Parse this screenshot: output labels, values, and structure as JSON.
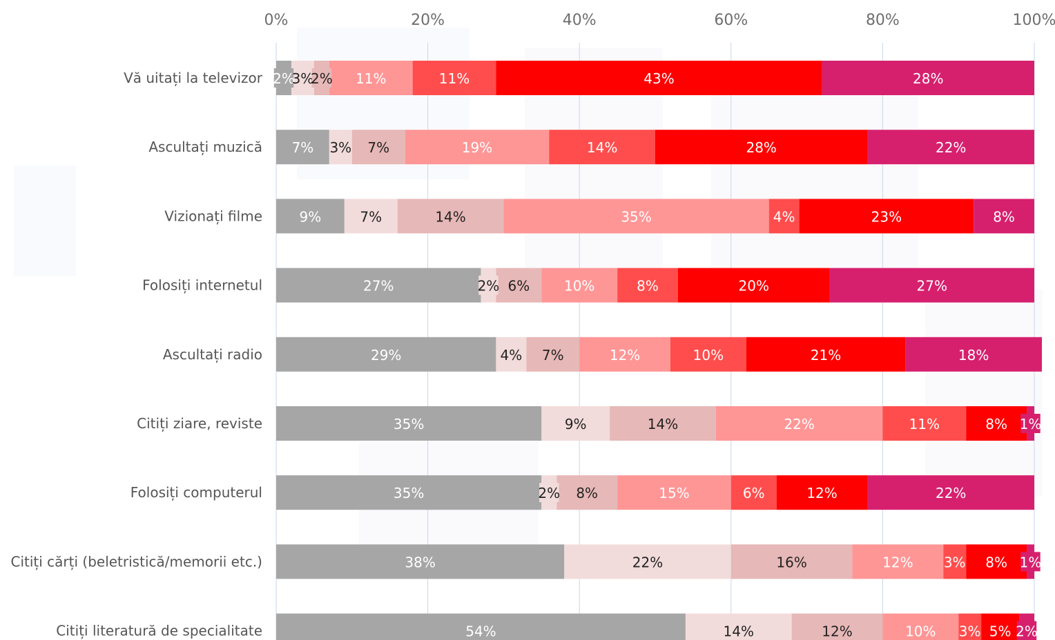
{
  "chart_data": {
    "type": "bar",
    "orientation": "horizontal",
    "stacked": true,
    "title": "",
    "xlabel": "",
    "ylabel": "",
    "xlim": [
      0,
      100
    ],
    "x_ticks": [
      "0%",
      "20%",
      "40%",
      "60%",
      "80%",
      "100%"
    ],
    "grid": true,
    "legend": "none",
    "value_suffix": "%",
    "categories": [
      "Vă uitați la televizor",
      "Ascultați muzică",
      "Vizionați filme",
      "Folosiți internetul",
      "Ascultați radio",
      "Citiți ziare, reviste",
      "Folosiți computerul",
      "Citiți cărți (beletristică/memorii etc.)",
      "Citiți literatură de specialitate"
    ],
    "series_colors": [
      "#a6a6a6",
      "#f2dcdb",
      "#e6b8b7",
      "#ff9696",
      "#ff4d4d",
      "#ff0000",
      "#d6206e"
    ],
    "label_colors": [
      "#ffffff",
      "#222222",
      "#222222",
      "#ffffff",
      "#ffffff",
      "#ffffff",
      "#ffffff"
    ],
    "series": [
      {
        "values": [
          2,
          7,
          9,
          27,
          29,
          35,
          35,
          38,
          54
        ]
      },
      {
        "values": [
          3,
          3,
          7,
          2,
          4,
          9,
          2,
          22,
          14
        ]
      },
      {
        "values": [
          2,
          7,
          14,
          6,
          7,
          14,
          8,
          16,
          12
        ]
      },
      {
        "values": [
          11,
          19,
          35,
          10,
          12,
          22,
          15,
          12,
          10
        ]
      },
      {
        "values": [
          11,
          14,
          4,
          8,
          10,
          11,
          6,
          3,
          3
        ]
      },
      {
        "values": [
          43,
          28,
          23,
          20,
          21,
          8,
          12,
          8,
          5
        ]
      },
      {
        "values": [
          28,
          22,
          8,
          27,
          18,
          1,
          22,
          1,
          2
        ]
      }
    ]
  }
}
